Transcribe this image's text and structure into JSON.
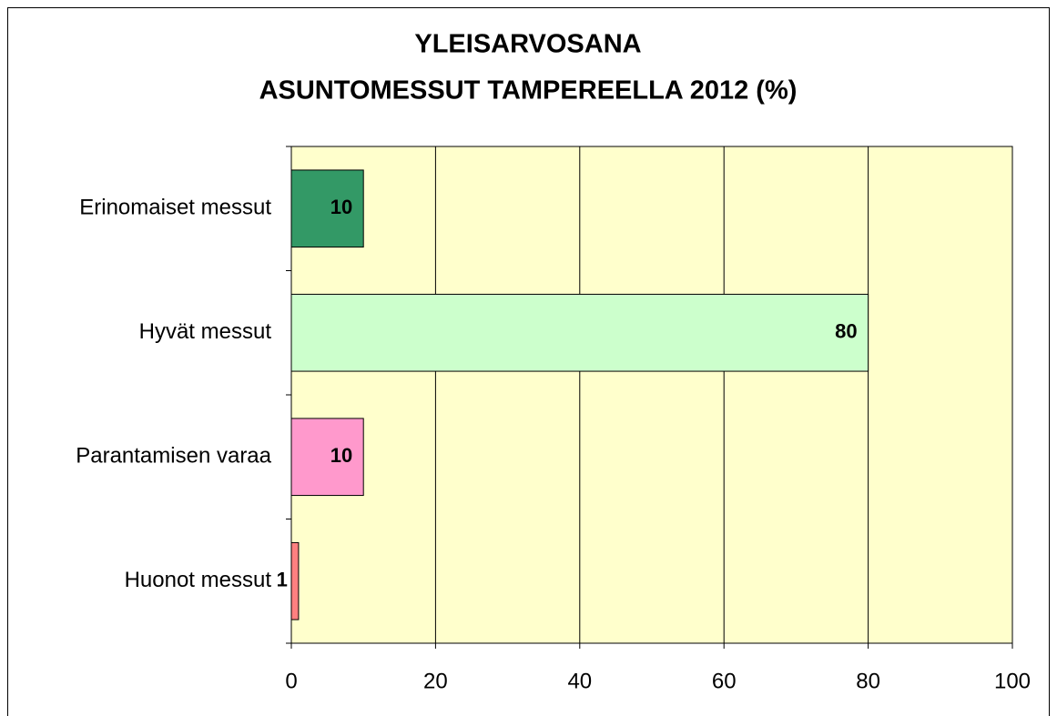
{
  "chart_data": {
    "type": "barh",
    "title": [
      "YLEISARVOSANA",
      "ASUNTOMESSUT TAMPEREELLA 2012 (%)"
    ],
    "categories": [
      "Erinomaiset messut",
      "Hyvät messut",
      "Parantamisen varaa",
      "Huonot messut"
    ],
    "values": [
      10,
      80,
      10,
      1
    ],
    "colors": [
      "#339966",
      "#ccffcc",
      "#ff99cc",
      "#ff8080"
    ],
    "xlim": [
      0,
      100
    ],
    "xticks": [
      0,
      20,
      40,
      60,
      80,
      100
    ],
    "grid": true
  }
}
